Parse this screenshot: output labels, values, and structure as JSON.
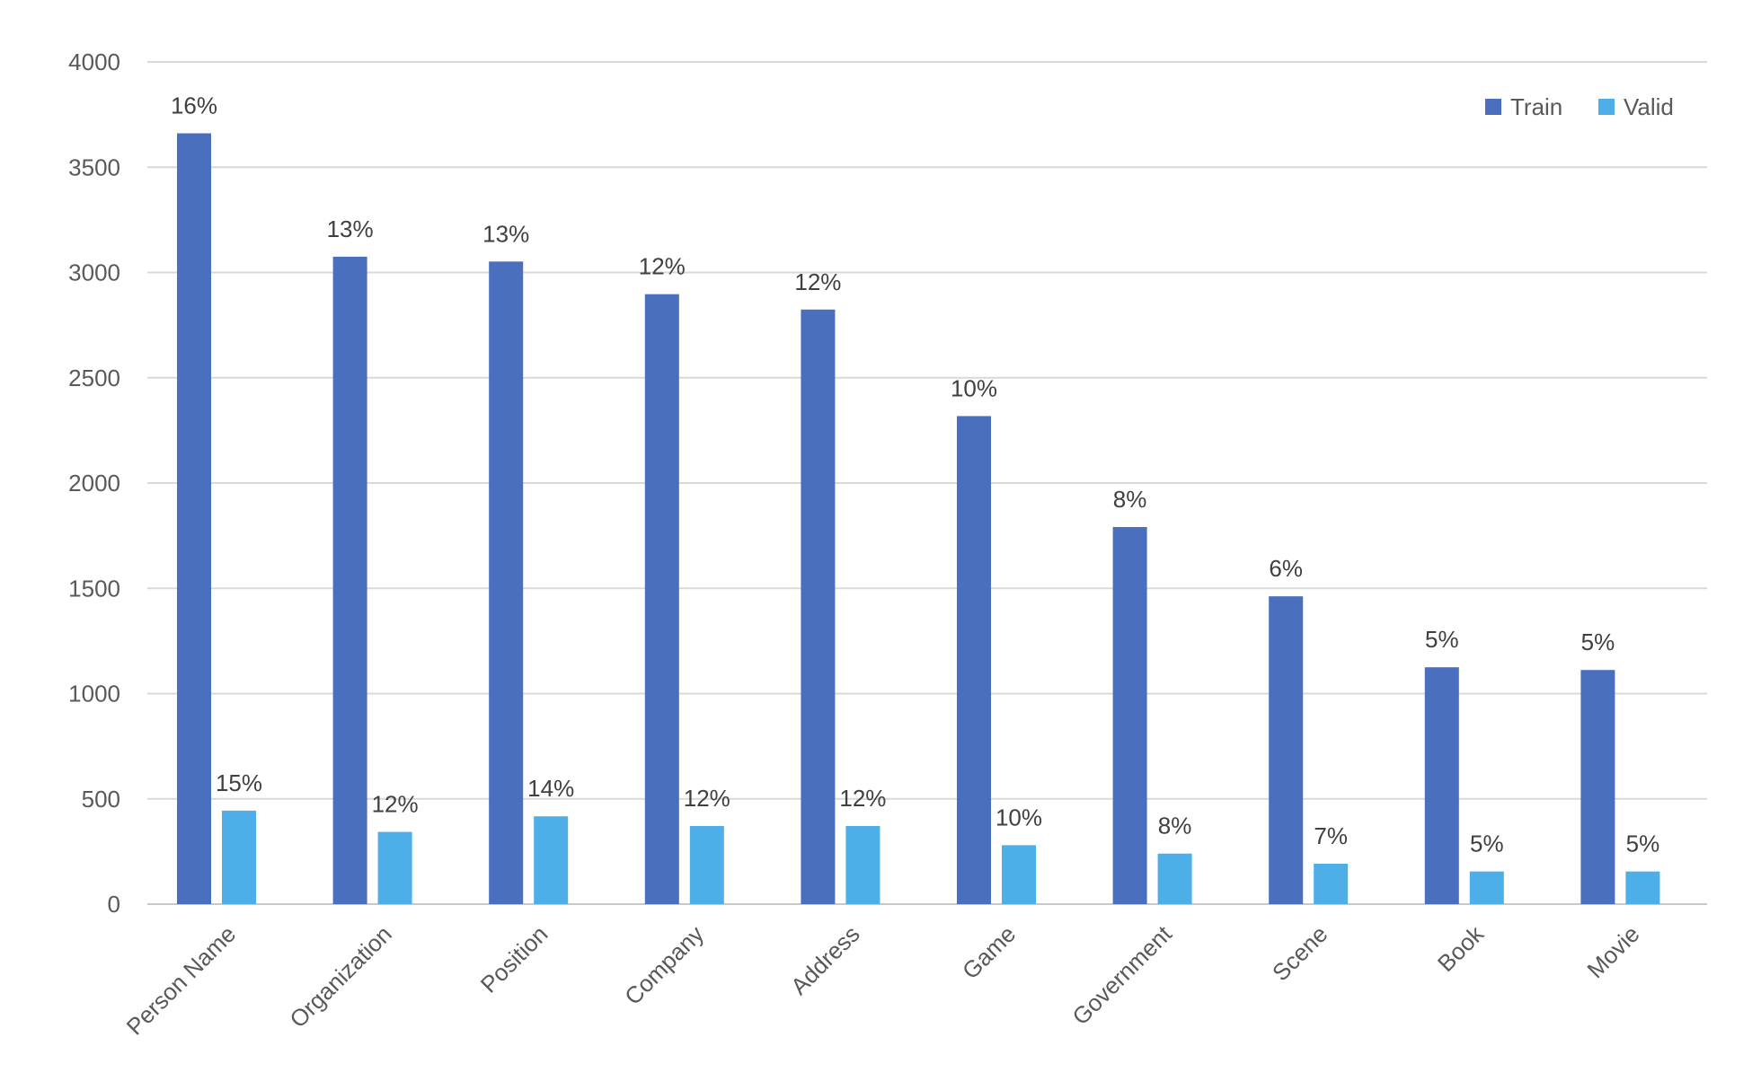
{
  "chart_data": {
    "type": "bar",
    "title": "",
    "xlabel": "",
    "ylabel": "",
    "ylim": [
      0,
      4000
    ],
    "yticks": [
      0,
      500,
      1000,
      1500,
      2000,
      2500,
      3000,
      3500,
      4000
    ],
    "grid": true,
    "legend_position": "top-right",
    "categories": [
      "Person Name",
      "Organization",
      "Position",
      "Company",
      "Address",
      "Game",
      "Government",
      "Scene",
      "Book",
      "Movie"
    ],
    "series": [
      {
        "name": "Train",
        "color": "#4a6fbf",
        "values": [
          3661,
          3075,
          3052,
          2897,
          2824,
          2318,
          1791,
          1462,
          1125,
          1112
        ],
        "labels": [
          "16%",
          "13%",
          "13%",
          "12%",
          "12%",
          "10%",
          "8%",
          "6%",
          "5%",
          "5%"
        ]
      },
      {
        "name": "Valid",
        "color": "#4daee8",
        "values": [
          444,
          343,
          417,
          371,
          371,
          280,
          240,
          192,
          155,
          155
        ],
        "labels": [
          "15%",
          "12%",
          "14%",
          "12%",
          "12%",
          "10%",
          "8%",
          "7%",
          "5%",
          "5%"
        ]
      }
    ]
  }
}
